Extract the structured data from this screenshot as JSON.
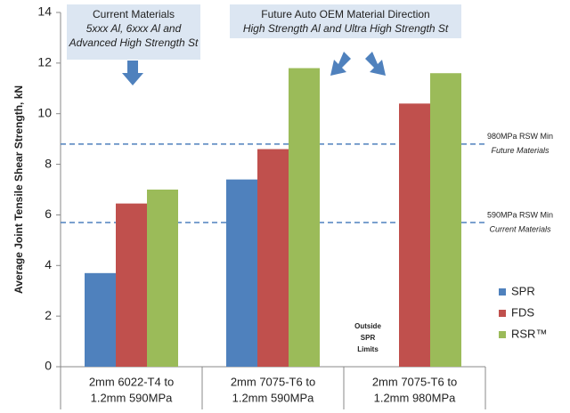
{
  "chart_data": {
    "type": "bar",
    "y_label": "Average Joint Tensile Shear Strength, kN",
    "categories": [
      [
        "2mm 6022-T4 to",
        "1.2mm 590MPa"
      ],
      [
        "2mm 7075-T6 to",
        "1.2mm 590MPa"
      ],
      [
        "2mm 7075-T6 to",
        "1.2mm 980MPa"
      ]
    ],
    "series": [
      {
        "name": "SPR",
        "color": "#4f81bd",
        "values": [
          3.7,
          7.4,
          null
        ]
      },
      {
        "name": "FDS",
        "color": "#c0504d",
        "values": [
          6.45,
          8.6,
          10.4
        ]
      },
      {
        "name": "RSR™",
        "color": "#9bbb59",
        "values": [
          7.0,
          11.8,
          11.6
        ]
      }
    ],
    "ylim": [
      0,
      14
    ],
    "yticks": [
      0,
      2,
      4,
      6,
      8,
      10,
      12,
      14
    ],
    "reference_lines": [
      {
        "value": 8.8,
        "label": [
          "980MPa RSW Min",
          "Future Materials"
        ],
        "color": "#4f81bd"
      },
      {
        "value": 5.7,
        "label": [
          "590MPa RSW Min",
          "Current Materials"
        ],
        "color": "#4f81bd"
      }
    ],
    "annotations": [
      {
        "lines": [
          "Current Materials",
          "5xxx Al, 6xxx Al and",
          "Advanced High Strength St"
        ]
      },
      {
        "lines": [
          "Future Auto OEM Material Direction",
          "High Strength Al and Ultra High Strength St"
        ]
      },
      {
        "lines": [
          "Outside",
          "SPR",
          "Limits"
        ]
      }
    ],
    "legend": "right"
  }
}
